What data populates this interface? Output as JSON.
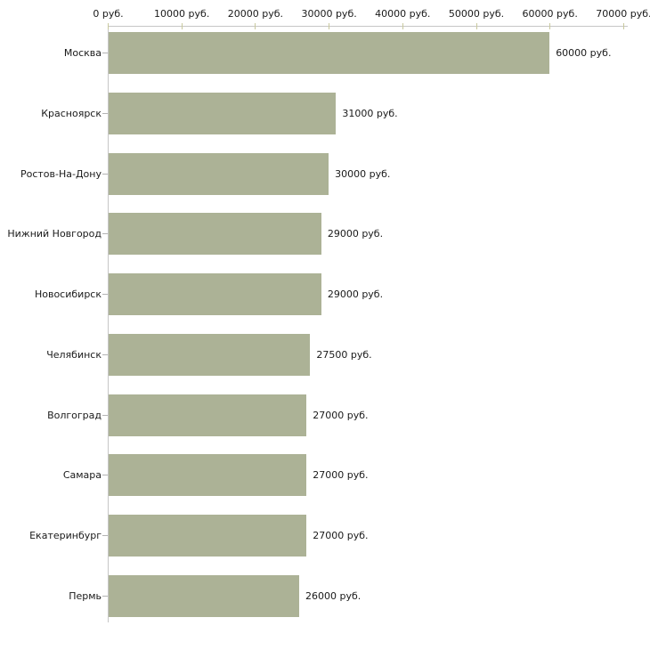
{
  "chart_data": {
    "type": "bar",
    "orientation": "horizontal",
    "categories": [
      "Москва",
      "Красноярск",
      "Ростов-На-Дону",
      "Нижний Новгород",
      "Новосибирск",
      "Челябинск",
      "Волгоград",
      "Самара",
      "Екатеринбург",
      "Пермь"
    ],
    "values": [
      60000,
      31000,
      30000,
      29000,
      29000,
      27500,
      27000,
      27000,
      27000,
      26000
    ],
    "value_labels": [
      "60000 руб.",
      "31000 руб.",
      "30000 руб.",
      "29000 руб.",
      "29000 руб.",
      "27500 руб.",
      "27000 руб.",
      "27000 руб.",
      "27000 руб.",
      "26000 руб."
    ],
    "x_tick_values": [
      0,
      10000,
      20000,
      30000,
      40000,
      50000,
      60000,
      70000
    ],
    "x_tick_labels": [
      "0 руб.",
      "10000 руб.",
      "20000 руб.",
      "30000 руб.",
      "40000 руб.",
      "50000 руб.",
      "60000 руб.",
      "70000 руб."
    ],
    "xlim": [
      0,
      70000
    ],
    "unit": "руб.",
    "title": "",
    "xlabel": "",
    "ylabel": "",
    "grid": false,
    "legend": false,
    "colors": {
      "bar": "#acb296",
      "x_axis_line": "#c6c6c6",
      "y_axis_line": "#c6c6c6",
      "x_tick": "#c9c99e",
      "category_tick": "#b3b3b3",
      "text": "#1a1a1a",
      "background": "#ffffff"
    }
  }
}
